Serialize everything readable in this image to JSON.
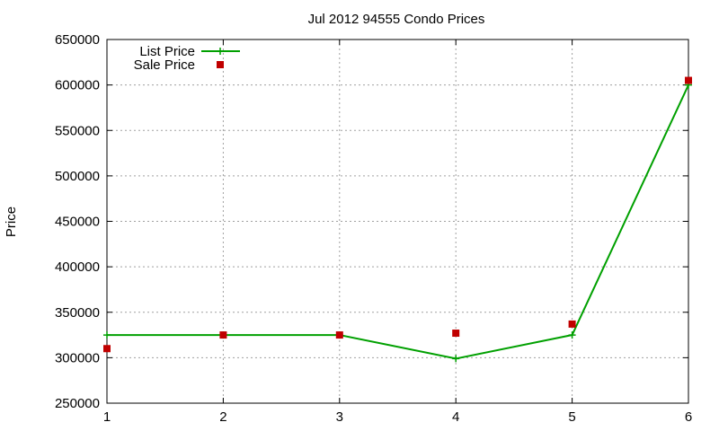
{
  "chart_data": {
    "type": "line",
    "title": "Jul 2012 94555 Condo Prices",
    "ylabel": "Price",
    "xlabel": "",
    "x": [
      1,
      2,
      3,
      4,
      5,
      6
    ],
    "xlim": [
      1,
      6
    ],
    "ylim": [
      250000,
      650000
    ],
    "xticks": [
      "1",
      "2",
      "3",
      "4",
      "5",
      "6"
    ],
    "yticks": [
      "250000",
      "300000",
      "350000",
      "400000",
      "450000",
      "500000",
      "550000",
      "600000",
      "650000"
    ],
    "grid": true,
    "legend_position": "top-left",
    "series": [
      {
        "name": "List Price",
        "style": "linespoints",
        "color": "#00a000",
        "marker": "plus",
        "values": [
          325000,
          325000,
          325000,
          299000,
          325000,
          600000
        ]
      },
      {
        "name": "Sale Price",
        "style": "points",
        "color": "#c00000",
        "marker": "square",
        "values": [
          310000,
          325000,
          325000,
          327000,
          337000,
          605000
        ]
      }
    ]
  }
}
